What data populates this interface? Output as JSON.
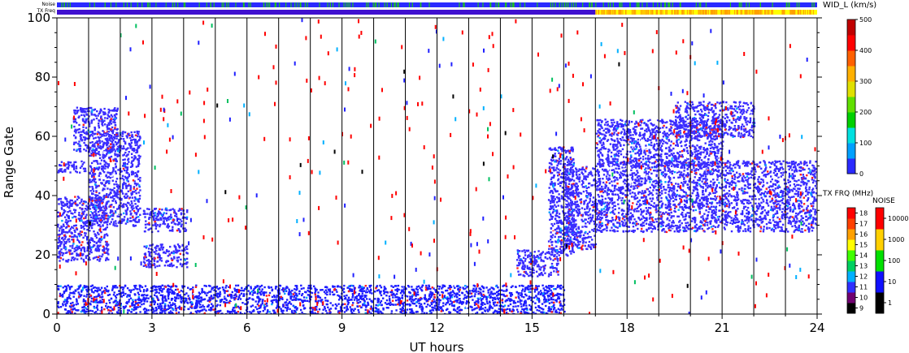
{
  "chart_data": {
    "type": "heatmap",
    "title": "",
    "xlabel": "UT hours",
    "ylabel": "Range Gate",
    "xlim": [
      0,
      24
    ],
    "ylim": [
      0,
      100
    ],
    "xticks": [
      0,
      3,
      6,
      9,
      12,
      15,
      18,
      21,
      24
    ],
    "yticks": [
      0,
      20,
      40,
      60,
      80,
      100
    ],
    "vertical_lines_hours": [
      1,
      2,
      3,
      4,
      5,
      6,
      7,
      8,
      9,
      10,
      11,
      12,
      13,
      14,
      15,
      16,
      17,
      18,
      19,
      20,
      21,
      22,
      23
    ],
    "top_strips": [
      {
        "label": "Noise"
      },
      {
        "label": "TX Freq"
      }
    ],
    "colorbar_width": {
      "label": "WID_L (km/s)",
      "ticks": [
        0,
        100,
        200,
        300,
        400,
        500
      ],
      "colors": [
        "#2a2aff",
        "#00a0ff",
        "#00e0e0",
        "#00d000",
        "#60e000",
        "#e0e000",
        "#ffb000",
        "#ff6000",
        "#ff0000",
        "#c00000"
      ]
    },
    "colorbar_txfrq": {
      "label": "TX FRQ (MHz)",
      "ticks": [
        "9",
        "10",
        "11",
        "12",
        "13",
        "14",
        "15",
        "16",
        "17",
        "18"
      ],
      "colors": [
        "#000000",
        "#700070",
        "#3030ff",
        "#00b0ff",
        "#00d060",
        "#40ff00",
        "#ffff00",
        "#ffa000",
        "#ff4000",
        "#ff0000"
      ]
    },
    "colorbar_noise": {
      "label": "NOISE",
      "ticks": [
        "1",
        "10",
        "100",
        "1000",
        "10000"
      ],
      "colors": [
        "#000000",
        "#1010ff",
        "#00e000",
        "#ffd000",
        "#ff0000"
      ]
    },
    "regions": [
      {
        "name": "early-band-a",
        "x": [
          0.0,
          1.6
        ],
        "y": [
          18,
          40
        ],
        "color": "#3a2cff"
      },
      {
        "name": "early-band-b",
        "x": [
          0.0,
          0.9
        ],
        "y": [
          48,
          52
        ],
        "color": "#3a2cff"
      },
      {
        "name": "rising-arc",
        "x": [
          1.0,
          2.6
        ],
        "y": [
          30,
          62
        ],
        "color": "#3a2cff"
      },
      {
        "name": "upper-arc",
        "x": [
          0.5,
          1.9
        ],
        "y": [
          55,
          70
        ],
        "color": "#3a2cff"
      },
      {
        "name": "mid-patch-a",
        "x": [
          2.7,
          4.1
        ],
        "y": [
          16,
          24
        ],
        "color": "#3a2cff"
      },
      {
        "name": "mid-patch-b",
        "x": [
          2.7,
          4.1
        ],
        "y": [
          28,
          36
        ],
        "color": "#3a2cff"
      },
      {
        "name": "ground-scatter",
        "x": [
          0.0,
          16.0
        ],
        "y": [
          0,
          10
        ],
        "color": "#1d1dff"
      },
      {
        "name": "patch-15",
        "x": [
          14.5,
          15.8
        ],
        "y": [
          13,
          22
        ],
        "color": "#3a2cff"
      },
      {
        "name": "arc-15",
        "x": [
          15.5,
          16.3
        ],
        "y": [
          20,
          57
        ],
        "color": "#3a2cff"
      },
      {
        "name": "block-16-17",
        "x": [
          16.0,
          17.0
        ],
        "y": [
          22,
          50
        ],
        "color": "#3a2cff"
      },
      {
        "name": "late-main",
        "x": [
          17.0,
          24.0
        ],
        "y": [
          28,
          52
        ],
        "color": "#3a2cff"
      },
      {
        "name": "late-upper",
        "x": [
          17.0,
          21.0
        ],
        "y": [
          50,
          66
        ],
        "color": "#3a2cff"
      },
      {
        "name": "late-top",
        "x": [
          19.5,
          22.0
        ],
        "y": [
          60,
          72
        ],
        "color": "#3a2cff"
      }
    ]
  }
}
